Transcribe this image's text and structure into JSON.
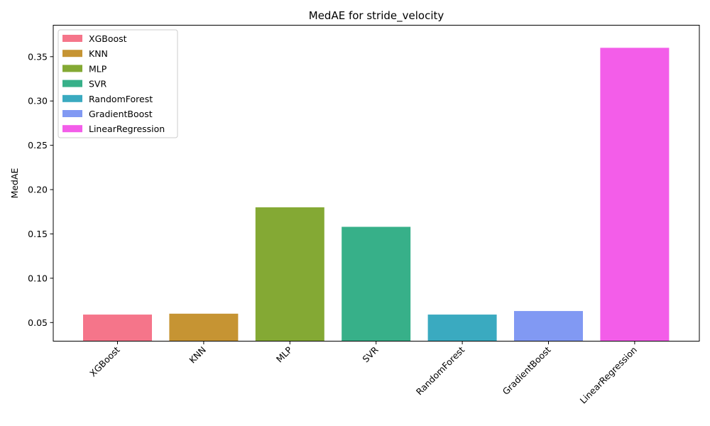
{
  "chart_data": {
    "type": "bar",
    "title": "MedAE for stride_velocity",
    "xlabel": "",
    "ylabel": "MedAE",
    "ylim": [
      0.029,
      0.3855
    ],
    "yticks": [
      0.05,
      0.1,
      0.15,
      0.2,
      0.25,
      0.3,
      0.35
    ],
    "ytick_labels": [
      "0.05",
      "0.10",
      "0.15",
      "0.20",
      "0.25",
      "0.30",
      "0.35"
    ],
    "categories": [
      "XGBoost",
      "KNN",
      "MLP",
      "SVR",
      "RandomForest",
      "GradientBoost",
      "LinearRegression"
    ],
    "values": [
      0.059,
      0.06,
      0.18,
      0.158,
      0.059,
      0.063,
      0.36
    ],
    "colors": [
      "#f5758a",
      "#c69433",
      "#84a934",
      "#37b089",
      "#3aaac0",
      "#8199f3",
      "#f35de9"
    ],
    "grid": false,
    "legend": {
      "position": "top-left",
      "entries": [
        "XGBoost",
        "KNN",
        "MLP",
        "SVR",
        "RandomForest",
        "GradientBoost",
        "LinearRegression"
      ]
    }
  }
}
